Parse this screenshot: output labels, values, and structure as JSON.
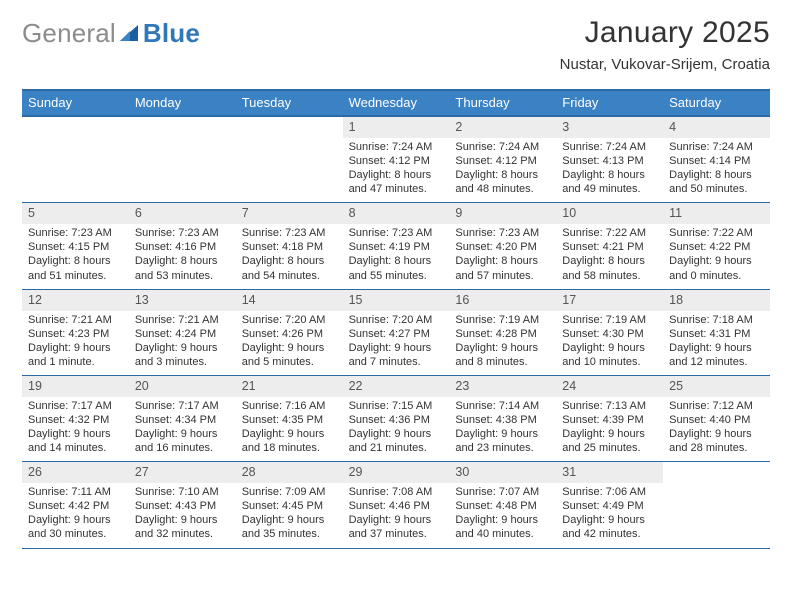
{
  "logo": {
    "general": "General",
    "blue": "Blue"
  },
  "title": {
    "month": "January 2025",
    "location": "Nustar, Vukovar-Srijem, Croatia"
  },
  "colors": {
    "accent": "#3a82c4",
    "accent_border": "#2b6aa6",
    "daynum_bg": "#ededed",
    "text": "#333333",
    "logo_gray": "#8c8c8c",
    "logo_blue": "#3078b9"
  },
  "day_names": [
    "Sunday",
    "Monday",
    "Tuesday",
    "Wednesday",
    "Thursday",
    "Friday",
    "Saturday"
  ],
  "weeks": [
    [
      {
        "blank": true
      },
      {
        "blank": true
      },
      {
        "blank": true
      },
      {
        "day": "1",
        "sunrise": "7:24 AM",
        "sunset": "4:12 PM",
        "daylight": "8 hours and 47 minutes."
      },
      {
        "day": "2",
        "sunrise": "7:24 AM",
        "sunset": "4:12 PM",
        "daylight": "8 hours and 48 minutes."
      },
      {
        "day": "3",
        "sunrise": "7:24 AM",
        "sunset": "4:13 PM",
        "daylight": "8 hours and 49 minutes."
      },
      {
        "day": "4",
        "sunrise": "7:24 AM",
        "sunset": "4:14 PM",
        "daylight": "8 hours and 50 minutes."
      }
    ],
    [
      {
        "day": "5",
        "sunrise": "7:23 AM",
        "sunset": "4:15 PM",
        "daylight": "8 hours and 51 minutes."
      },
      {
        "day": "6",
        "sunrise": "7:23 AM",
        "sunset": "4:16 PM",
        "daylight": "8 hours and 53 minutes."
      },
      {
        "day": "7",
        "sunrise": "7:23 AM",
        "sunset": "4:18 PM",
        "daylight": "8 hours and 54 minutes."
      },
      {
        "day": "8",
        "sunrise": "7:23 AM",
        "sunset": "4:19 PM",
        "daylight": "8 hours and 55 minutes."
      },
      {
        "day": "9",
        "sunrise": "7:23 AM",
        "sunset": "4:20 PM",
        "daylight": "8 hours and 57 minutes."
      },
      {
        "day": "10",
        "sunrise": "7:22 AM",
        "sunset": "4:21 PM",
        "daylight": "8 hours and 58 minutes."
      },
      {
        "day": "11",
        "sunrise": "7:22 AM",
        "sunset": "4:22 PM",
        "daylight": "9 hours and 0 minutes."
      }
    ],
    [
      {
        "day": "12",
        "sunrise": "7:21 AM",
        "sunset": "4:23 PM",
        "daylight": "9 hours and 1 minute."
      },
      {
        "day": "13",
        "sunrise": "7:21 AM",
        "sunset": "4:24 PM",
        "daylight": "9 hours and 3 minutes."
      },
      {
        "day": "14",
        "sunrise": "7:20 AM",
        "sunset": "4:26 PM",
        "daylight": "9 hours and 5 minutes."
      },
      {
        "day": "15",
        "sunrise": "7:20 AM",
        "sunset": "4:27 PM",
        "daylight": "9 hours and 7 minutes."
      },
      {
        "day": "16",
        "sunrise": "7:19 AM",
        "sunset": "4:28 PM",
        "daylight": "9 hours and 8 minutes."
      },
      {
        "day": "17",
        "sunrise": "7:19 AM",
        "sunset": "4:30 PM",
        "daylight": "9 hours and 10 minutes."
      },
      {
        "day": "18",
        "sunrise": "7:18 AM",
        "sunset": "4:31 PM",
        "daylight": "9 hours and 12 minutes."
      }
    ],
    [
      {
        "day": "19",
        "sunrise": "7:17 AM",
        "sunset": "4:32 PM",
        "daylight": "9 hours and 14 minutes."
      },
      {
        "day": "20",
        "sunrise": "7:17 AM",
        "sunset": "4:34 PM",
        "daylight": "9 hours and 16 minutes."
      },
      {
        "day": "21",
        "sunrise": "7:16 AM",
        "sunset": "4:35 PM",
        "daylight": "9 hours and 18 minutes."
      },
      {
        "day": "22",
        "sunrise": "7:15 AM",
        "sunset": "4:36 PM",
        "daylight": "9 hours and 21 minutes."
      },
      {
        "day": "23",
        "sunrise": "7:14 AM",
        "sunset": "4:38 PM",
        "daylight": "9 hours and 23 minutes."
      },
      {
        "day": "24",
        "sunrise": "7:13 AM",
        "sunset": "4:39 PM",
        "daylight": "9 hours and 25 minutes."
      },
      {
        "day": "25",
        "sunrise": "7:12 AM",
        "sunset": "4:40 PM",
        "daylight": "9 hours and 28 minutes."
      }
    ],
    [
      {
        "day": "26",
        "sunrise": "7:11 AM",
        "sunset": "4:42 PM",
        "daylight": "9 hours and 30 minutes."
      },
      {
        "day": "27",
        "sunrise": "7:10 AM",
        "sunset": "4:43 PM",
        "daylight": "9 hours and 32 minutes."
      },
      {
        "day": "28",
        "sunrise": "7:09 AM",
        "sunset": "4:45 PM",
        "daylight": "9 hours and 35 minutes."
      },
      {
        "day": "29",
        "sunrise": "7:08 AM",
        "sunset": "4:46 PM",
        "daylight": "9 hours and 37 minutes."
      },
      {
        "day": "30",
        "sunrise": "7:07 AM",
        "sunset": "4:48 PM",
        "daylight": "9 hours and 40 minutes."
      },
      {
        "day": "31",
        "sunrise": "7:06 AM",
        "sunset": "4:49 PM",
        "daylight": "9 hours and 42 minutes."
      },
      {
        "blank": true
      }
    ]
  ],
  "labels": {
    "sunrise": "Sunrise:",
    "sunset": "Sunset:",
    "daylight": "Daylight:"
  }
}
